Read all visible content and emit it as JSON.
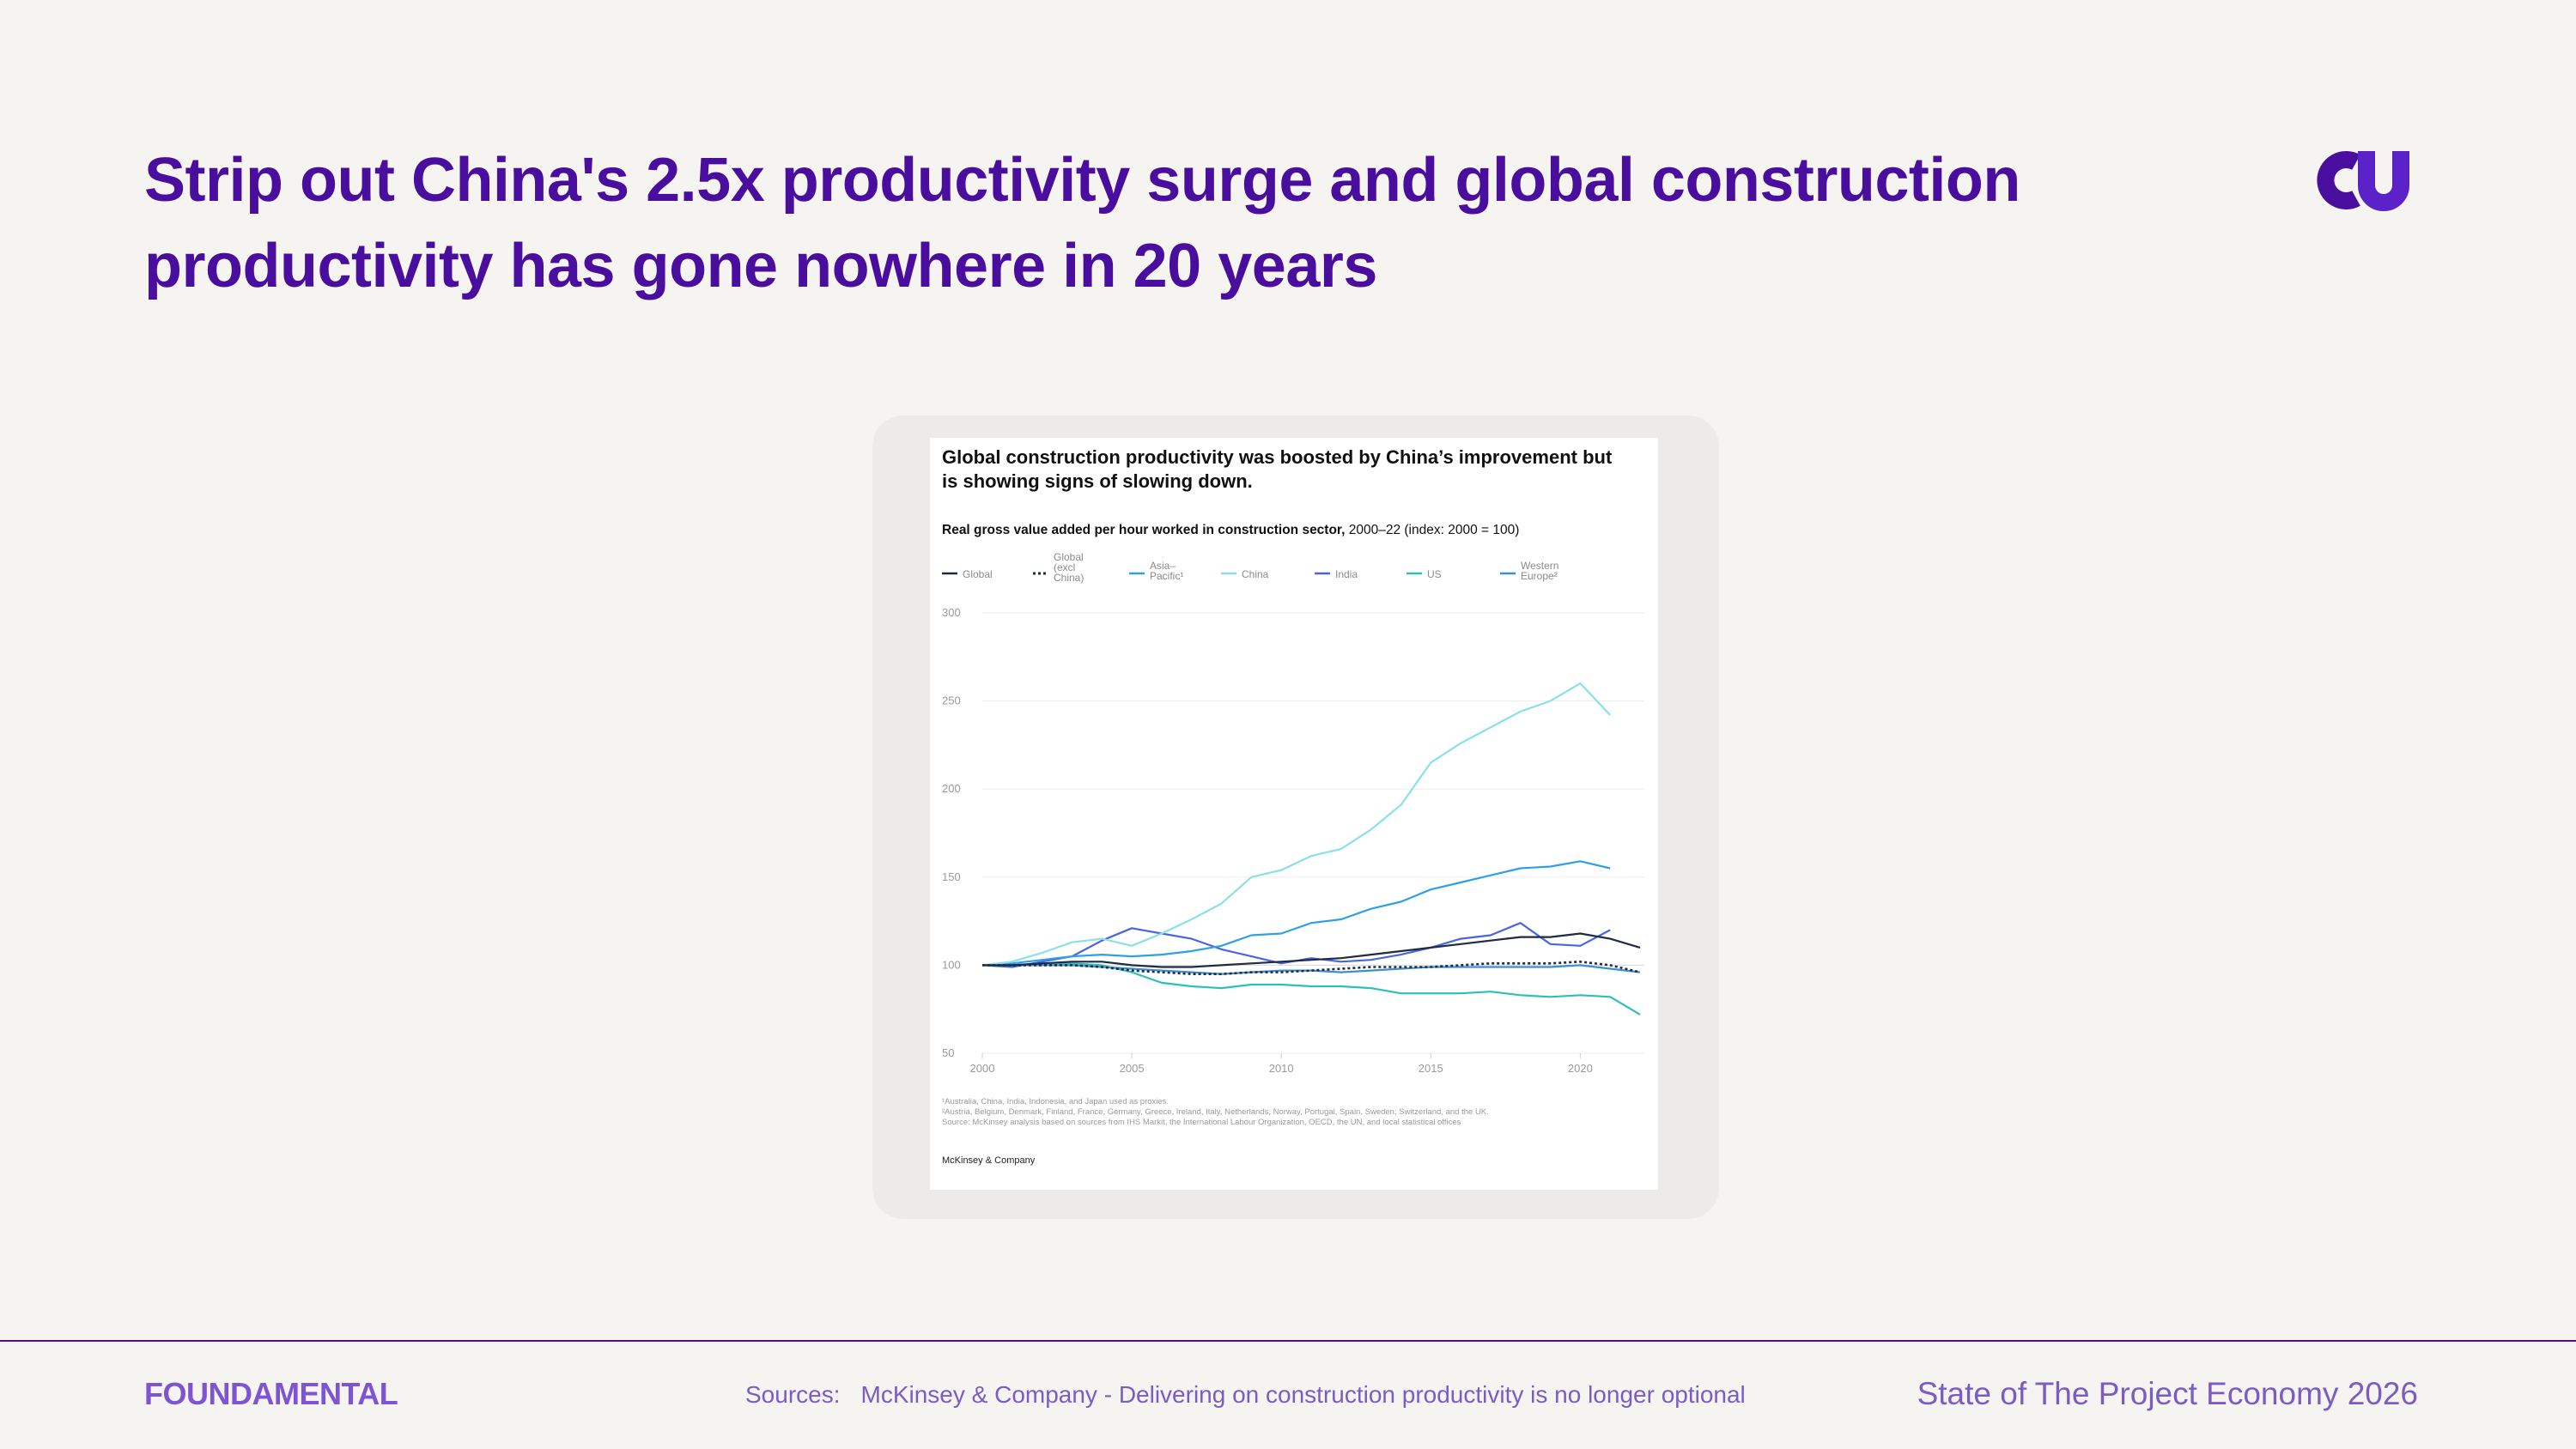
{
  "headline": {
    "line1": "Strip out China's 2.5x productivity surge and global construction",
    "line2": "productivity has gone nowhere in 20 years"
  },
  "footer": {
    "logo": "FOUNDAMENTAL",
    "sources_label": "Sources:",
    "sources_text": "McKinsey & Company - Delivering on construction productivity is no longer optional",
    "report_title": "State of The Project Economy 2026"
  },
  "colors": {
    "brand_purple": "#4a0e9e",
    "footer_purple": "#7a5cc2",
    "background": "#f5f4f1"
  },
  "chart_data": {
    "type": "line",
    "title_line1": "Global construction productivity was boosted by China’s improvement but",
    "title_line2": "is showing signs of slowing down.",
    "subtitle_bold": "Real gross value added per hour worked in construction sector,",
    "subtitle_regular": " 2000–22 (index: 2000 = 100)",
    "x": [
      2000,
      2001,
      2002,
      2003,
      2004,
      2005,
      2006,
      2007,
      2008,
      2009,
      2010,
      2011,
      2012,
      2013,
      2014,
      2015,
      2016,
      2017,
      2018,
      2019,
      2020,
      2021,
      2022
    ],
    "xticks": [
      "2000",
      "2005",
      "2010",
      "2015",
      "2020"
    ],
    "yticks": [
      "300",
      "250",
      "200",
      "150",
      "100",
      "50"
    ],
    "ylim": [
      50,
      300
    ],
    "xlim": [
      2000,
      2022
    ],
    "grid": true,
    "legend_position": "top",
    "series": [
      {
        "legend": [
          "Global"
        ],
        "color": "#1f2a44",
        "dashed": false,
        "values": [
          100,
          100,
          101,
          102,
          102,
          100,
          99,
          99,
          100,
          101,
          102,
          103,
          104,
          106,
          108,
          110,
          112,
          114,
          116,
          116,
          118,
          115,
          110
        ]
      },
      {
        "legend": [
          "Global",
          "(excl",
          "China)"
        ],
        "color": "#1f2a44",
        "dashed": true,
        "values": [
          100,
          100,
          100,
          100,
          99,
          97,
          96,
          95,
          95,
          96,
          96,
          97,
          98,
          99,
          99,
          99,
          100,
          101,
          101,
          101,
          102,
          100,
          96
        ]
      },
      {
        "legend": [
          "Asia–",
          "Pacific¹"
        ],
        "color": "#2ea0e6",
        "dashed": false,
        "values": [
          100,
          101,
          103,
          105,
          106,
          105,
          106,
          108,
          111,
          117,
          118,
          124,
          126,
          132,
          136,
          143,
          147,
          151,
          155,
          156,
          159,
          155,
          null
        ]
      },
      {
        "legend": [
          "China"
        ],
        "color": "#8ae0ea",
        "dashed": false,
        "values": [
          100,
          102,
          107,
          113,
          115,
          111,
          118,
          126,
          135,
          150,
          154,
          162,
          166,
          177,
          191,
          215,
          226,
          235,
          244,
          250,
          260,
          242,
          null
        ]
      },
      {
        "legend": [
          "India"
        ],
        "color": "#4866e0",
        "dashed": false,
        "values": [
          100,
          99,
          102,
          105,
          114,
          121,
          118,
          115,
          109,
          105,
          101,
          104,
          102,
          103,
          106,
          110,
          115,
          117,
          124,
          112,
          111,
          120,
          null
        ]
      },
      {
        "legend": [
          "US"
        ],
        "color": "#2cc0b8",
        "dashed": false,
        "values": [
          100,
          100,
          101,
          101,
          100,
          96,
          90,
          88,
          87,
          89,
          89,
          88,
          88,
          87,
          84,
          84,
          84,
          85,
          83,
          82,
          83,
          82,
          72
        ]
      },
      {
        "legend": [
          "Western",
          "Europe²"
        ],
        "color": "#3d8fd0",
        "dashed": false,
        "values": [
          100,
          100,
          100,
          100,
          99,
          98,
          97,
          96,
          95,
          96,
          97,
          97,
          96,
          97,
          98,
          99,
          99,
          99,
          99,
          99,
          100,
          98,
          96
        ]
      }
    ],
    "footnotes": [
      "¹Australia, China, India, Indonesia, and Japan used as proxies.",
      "²Austria, Belgium, Denmark, Finland, France, Germany, Greece, Ireland, Italy, Netherlands, Norway, Portugal, Spain, Sweden, Switzerland, and the UK.",
      "Source: McKinsey analysis based on sources from IHS Markit, the International Labour Organization, OECD, the UN, and local statistical offices"
    ],
    "credit": "McKinsey & Company"
  }
}
